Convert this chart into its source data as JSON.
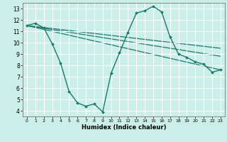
{
  "xlabel": "Humidex (Indice chaleur)",
  "background_color": "#cceee8",
  "grid_color": "#ffffff",
  "line_color": "#1a7a6e",
  "xlim": [
    -0.5,
    23.5
  ],
  "ylim": [
    3.5,
    13.5
  ],
  "xticks": [
    0,
    1,
    2,
    3,
    4,
    5,
    6,
    7,
    8,
    9,
    10,
    11,
    12,
    13,
    14,
    15,
    16,
    17,
    18,
    19,
    20,
    21,
    22,
    23
  ],
  "yticks": [
    4,
    5,
    6,
    7,
    8,
    9,
    10,
    11,
    12,
    13
  ],
  "main_x": [
    0,
    1,
    2,
    3,
    4,
    5,
    6,
    7,
    8,
    9,
    10,
    11,
    12,
    13,
    14,
    15,
    16,
    17,
    18,
    19,
    20,
    21,
    22,
    23
  ],
  "main_y": [
    11.5,
    11.7,
    11.3,
    9.9,
    8.2,
    5.7,
    4.7,
    4.4,
    4.6,
    3.9,
    7.3,
    9.1,
    10.9,
    12.6,
    12.8,
    13.2,
    12.7,
    10.5,
    9.0,
    8.7,
    8.3,
    8.1,
    7.4,
    7.6
  ],
  "line1_x": [
    0,
    23
  ],
  "line1_y": [
    11.5,
    7.6
  ],
  "line2_x": [
    0,
    23
  ],
  "line2_y": [
    11.5,
    9.5
  ],
  "line3_x": [
    0,
    23
  ],
  "line3_y": [
    11.5,
    8.8
  ]
}
